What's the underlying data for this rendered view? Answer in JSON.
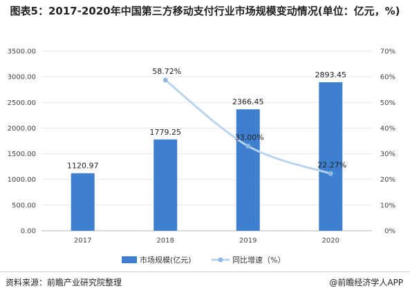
{
  "header": {
    "title": "图表5：2017-2020年中国第三方移动支付行业市场规模变动情况(单位：亿元，%)"
  },
  "footer": {
    "source": "资料来源：前瞻产业研究院整理",
    "brand": "@前瞻经济学人APP"
  },
  "colors": {
    "bar": "#3f7fd0",
    "line": "#b8d4ee",
    "point": "#8cb8e2",
    "grid": "#e6e6e6"
  },
  "chart_data": {
    "type": "bar",
    "categories": [
      "2017",
      "2018",
      "2019",
      "2020"
    ],
    "series": [
      {
        "name": "市场规模(亿元)",
        "type": "bar",
        "axis": "left",
        "values": [
          1120.97,
          1779.25,
          2366.45,
          2893.45
        ],
        "labels": [
          "1120.97",
          "1779.25",
          "2366.45",
          "2893.45"
        ]
      },
      {
        "name": "同比增速（%）",
        "type": "line",
        "axis": "right",
        "values": [
          null,
          58.72,
          33.0,
          22.27
        ],
        "labels": [
          "",
          "58.72%",
          "33.00%",
          "22.27%"
        ]
      }
    ],
    "ylim": [
      0,
      3500
    ],
    "y2lim": [
      0,
      70
    ],
    "yticks": [
      "0.00",
      "500.00",
      "1000.00",
      "1500.00",
      "2000.00",
      "2500.00",
      "3000.00",
      "3500.00"
    ],
    "y2ticks": [
      "0%",
      "10%",
      "20%",
      "30%",
      "40%",
      "50%",
      "60%",
      "70%"
    ],
    "grid": true,
    "legend": "bottom"
  }
}
